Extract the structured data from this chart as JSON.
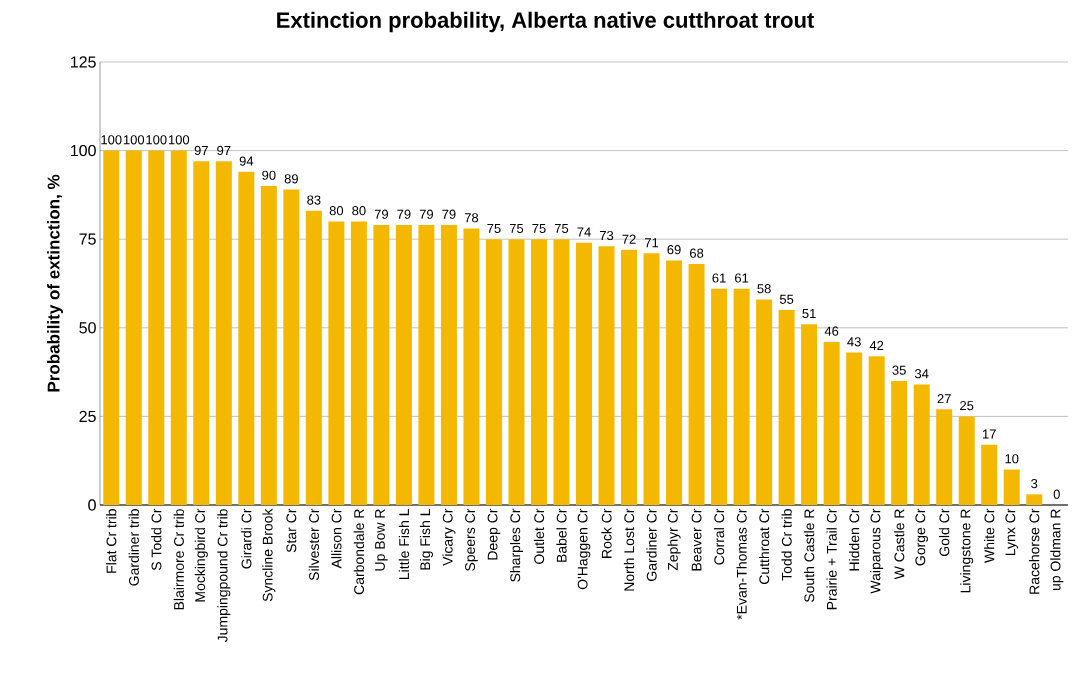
{
  "chart_data": {
    "type": "bar",
    "title": "Extinction probability, Alberta native cutthroat trout",
    "ylabel": "Probability of extinction, %",
    "categories": [
      "Flat Cr trib",
      "Gardiner trib",
      "S Todd Cr",
      "Blairmore Cr trib",
      "Mockingbird Cr",
      "Jumpingpound Cr trib",
      "Girardi Cr",
      "Syncline Brook",
      "Star Cr",
      "Silvester Cr",
      "Allison Cr",
      "Carbondale R",
      "Up Bow R",
      "Little Fish L",
      "Big Fish L",
      "Vicary Cr",
      "Speers Cr",
      "Deep Cr",
      "Sharples Cr",
      "Outlet Cr",
      "Babel Cr",
      "O'Haggen Cr",
      "Rock Cr",
      "North Lost Cr",
      "Gardiner Cr",
      "Zephyr Cr",
      "Beaver Cr",
      "Corral Cr",
      "*Evan-Thomas Cr",
      "Cutthroat Cr",
      "Todd Cr trib",
      "South Castle R",
      "Prairie + Trail Cr",
      "Hidden Cr",
      "Waiparous Cr",
      "W Castle R",
      "Gorge Cr",
      "Gold Cr",
      "Livingstone R",
      "White Cr",
      "Lynx Cr",
      "Racehorse Cr",
      "up Oldman R"
    ],
    "values": [
      100,
      100,
      100,
      100,
      97,
      97,
      94,
      90,
      89,
      83,
      80,
      80,
      79,
      79,
      79,
      79,
      78,
      75,
      75,
      75,
      75,
      74,
      73,
      72,
      71,
      69,
      68,
      61,
      61,
      58,
      55,
      51,
      46,
      43,
      42,
      35,
      34,
      27,
      25,
      17,
      10,
      3,
      0
    ],
    "color": "#f5b800",
    "data_labels": true,
    "ylim": [
      0,
      125
    ],
    "yticks": [
      0,
      25,
      50,
      75,
      100,
      125
    ],
    "grid": "y"
  }
}
